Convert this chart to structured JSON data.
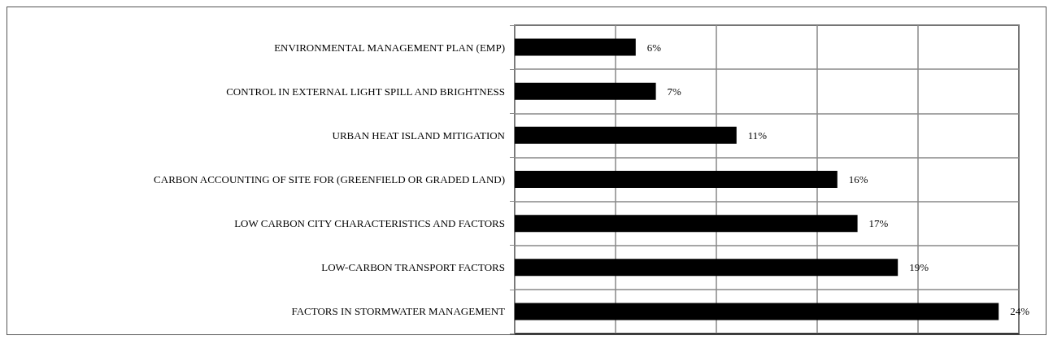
{
  "chart_data": {
    "type": "bar",
    "orientation": "horizontal",
    "categories": [
      "ENVIRONMENTAL MANAGEMENT PLAN (EMP)",
      "CONTROL IN EXTERNAL LIGHT SPILL AND BRIGHTNESS",
      "URBAN HEAT ISLAND MITIGATION",
      "CARBON ACCOUNTING OF SITE FOR (GREENFIELD OR GRADED LAND)",
      "LOW CARBON CITY CHARACTERISTICS AND FACTORS",
      "LOW-CARBON TRANSPORT FACTORS",
      "FACTORS IN STORMWATER MANAGEMENT"
    ],
    "values": [
      6,
      7,
      11,
      16,
      17,
      19,
      24
    ],
    "value_labels": [
      "6%",
      "7%",
      "11%",
      "16%",
      "17%",
      "19%",
      "24%"
    ],
    "color": "#000000",
    "xlim": [
      0,
      25
    ],
    "xticks": [
      {
        "value": 0,
        "label": null
      },
      {
        "value": 5,
        "label": null
      },
      {
        "value": 10,
        "label": null
      },
      {
        "value": 15,
        "label": null
      },
      {
        "value": 20,
        "label": null
      },
      {
        "value": 25,
        "label": null
      }
    ],
    "tick_labels": "y",
    "grid": true
  }
}
